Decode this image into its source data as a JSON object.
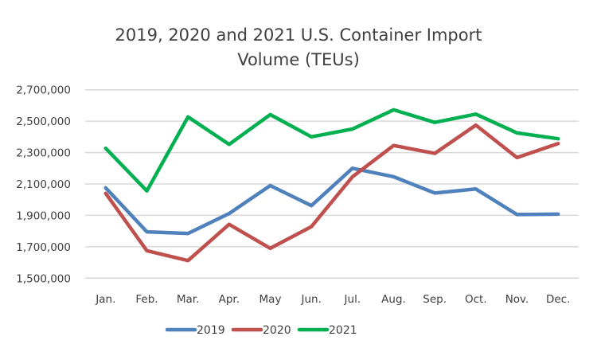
{
  "chart_data": {
    "type": "line",
    "title": "2019, 2020 and 2021 U.S. Container Import Volume (TEUs)",
    "title_lines": [
      "2019, 2020 and 2021 U.S. Container Import",
      "Volume (TEUs)"
    ],
    "xlabel": "",
    "ylabel": "",
    "categories": [
      "Jan.",
      "Feb.",
      "Mar.",
      "Apr.",
      "May",
      "Jun.",
      "Jul.",
      "Aug.",
      "Sep.",
      "Oct.",
      "Nov.",
      "Dec."
    ],
    "ylim": [
      1500000,
      2700000
    ],
    "yticks": [
      1500000,
      1700000,
      1900000,
      2100000,
      2300000,
      2500000,
      2700000
    ],
    "ytick_labels": [
      "1,500,000",
      "1,700,000",
      "1,900,000",
      "2,100,000",
      "2,300,000",
      "2,500,000",
      "2,700,000"
    ],
    "grid": true,
    "legend_position": "bottom",
    "series": [
      {
        "name": "2019",
        "color": "#4F81BD",
        "values": [
          2075000,
          1795000,
          1785000,
          1912000,
          2090000,
          1962000,
          2200000,
          2146000,
          2042000,
          2068000,
          1905000,
          1908000
        ]
      },
      {
        "name": "2020",
        "color": "#C0504D",
        "values": [
          2040000,
          1675000,
          1612000,
          1843000,
          1690000,
          1828000,
          2146000,
          2345000,
          2295000,
          2475000,
          2268000,
          2357000
        ]
      },
      {
        "name": "2021",
        "color": "#00B050",
        "values": [
          2327000,
          2056000,
          2527000,
          2352000,
          2542000,
          2400000,
          2450000,
          2572000,
          2492000,
          2545000,
          2425000,
          2388000
        ]
      }
    ]
  }
}
